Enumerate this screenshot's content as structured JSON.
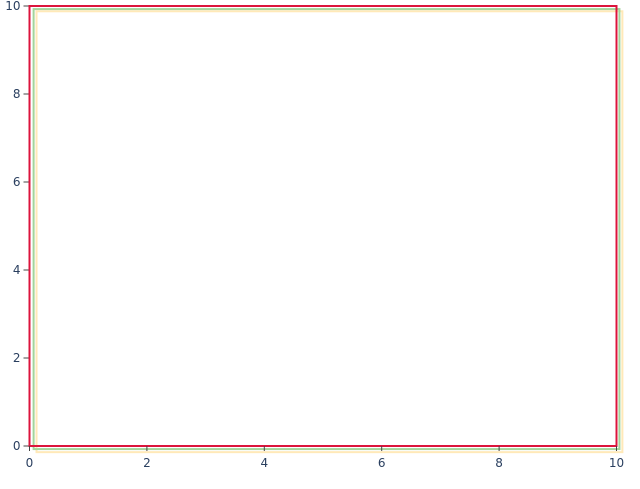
{
  "chart_data": {
    "type": "shapes",
    "xlim": [
      0,
      10
    ],
    "ylim": [
      0,
      10
    ],
    "x_ticks": [
      "0",
      "2",
      "4",
      "6",
      "8",
      "10"
    ],
    "y_ticks": [
      "0",
      "2",
      "4",
      "6",
      "8",
      "10"
    ],
    "grid": false,
    "shapes": [
      {
        "type": "rect",
        "x0": 0.12,
        "x1": 10.1,
        "y0": -0.14,
        "y1": 9.88,
        "color": "#ffe9b8"
      },
      {
        "type": "rect",
        "x0": 0.07,
        "x1": 10.05,
        "y0": -0.07,
        "y1": 9.93,
        "color": "#a3d49b"
      },
      {
        "type": "rect",
        "x0": 0,
        "x1": 10,
        "y0": 0,
        "y1": 10,
        "color": "#dc143c"
      }
    ]
  }
}
